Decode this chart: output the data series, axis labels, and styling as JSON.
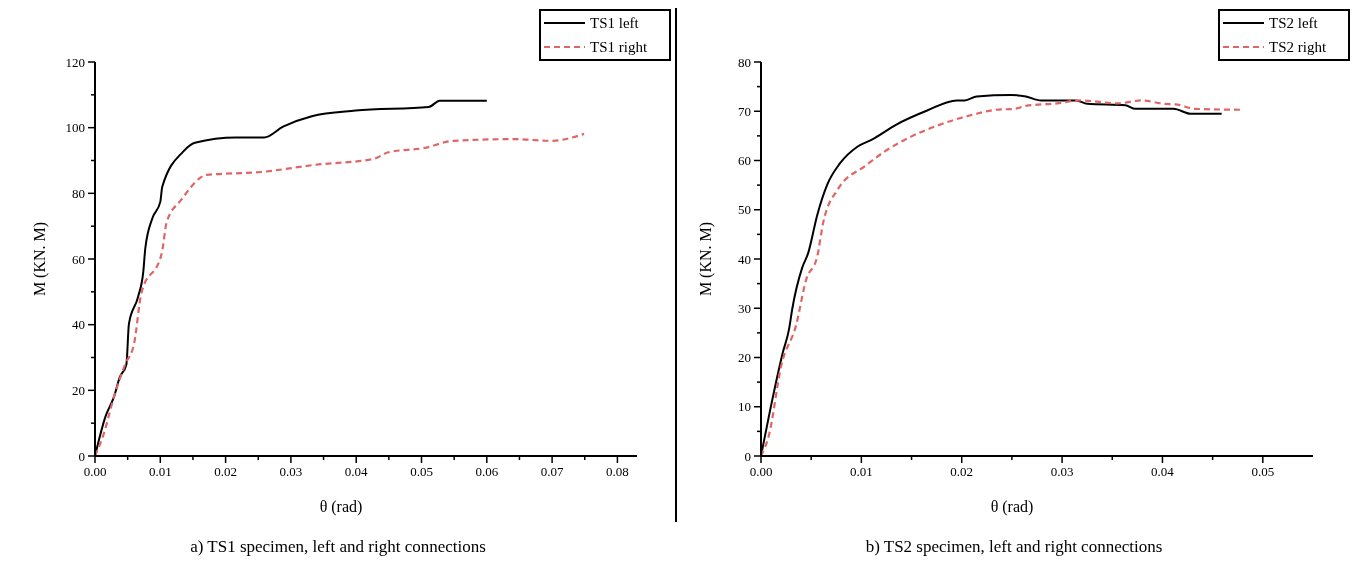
{
  "chart_data": [
    {
      "type": "line",
      "title": "a) TS1 specimen, left and right connections",
      "xlabel": "θ  (rad)",
      "ylabel": "M (KN. M)",
      "xlim": [
        0,
        0.083
      ],
      "ylim": [
        0,
        120
      ],
      "xticks": [
        {
          "value": 0,
          "label": "0.00"
        },
        {
          "value": 0.005,
          "label": null
        },
        {
          "value": 0.01,
          "label": "0.01"
        },
        {
          "value": 0.015,
          "label": null
        },
        {
          "value": 0.02,
          "label": "0.02"
        },
        {
          "value": 0.025,
          "label": null
        },
        {
          "value": 0.03,
          "label": "0.03"
        },
        {
          "value": 0.035,
          "label": null
        },
        {
          "value": 0.04,
          "label": "0.04"
        },
        {
          "value": 0.045,
          "label": null
        },
        {
          "value": 0.05,
          "label": "0.05"
        },
        {
          "value": 0.055,
          "label": null
        },
        {
          "value": 0.06,
          "label": "0.06"
        },
        {
          "value": 0.065,
          "label": null
        },
        {
          "value": 0.07,
          "label": "0.07"
        },
        {
          "value": 0.075,
          "label": null
        },
        {
          "value": 0.08,
          "label": "0.08"
        }
      ],
      "yticks": [
        0,
        {
          "value": 10,
          "label": null
        },
        20,
        {
          "value": 30,
          "label": null
        },
        40,
        {
          "value": 50,
          "label": null
        },
        60,
        {
          "value": 70,
          "label": null
        },
        80,
        {
          "value": 90,
          "label": null
        },
        100,
        {
          "value": 110,
          "label": null
        },
        120
      ],
      "legend": "top right",
      "grid": false,
      "marker": "none",
      "series": [
        {
          "name": "TS1 left",
          "color": "#000000",
          "line_style": "solid",
          "x": [
            0,
            0.0016,
            0.0029,
            0.0038,
            0.0048,
            0.0052,
            0.0066,
            0.0074,
            0.0077,
            0.0088,
            0.01,
            0.0103,
            0.0135,
            0.0153,
            0.0216,
            0.0259,
            0.0288,
            0.0332,
            0.0399,
            0.0511,
            0.0528,
            0.06
          ],
          "values": [
            0,
            12,
            18,
            24,
            27.8,
            40.3,
            48.5,
            56.2,
            63.2,
            72.5,
            77.4,
            82,
            92.7,
            95.4,
            97,
            97,
            100.3,
            103.5,
            105.2,
            106.3,
            108.2,
            108.2
          ]
        },
        {
          "name": "TS1 right",
          "color": "#e06666",
          "line_style": "dashed",
          "x": [
            0,
            0.0013,
            0.0029,
            0.0046,
            0.006,
            0.0071,
            0.0102,
            0.011,
            0.0132,
            0.0171,
            0.0254,
            0.0338,
            0.0427,
            0.0449,
            0.0504,
            0.0549,
            0.0643,
            0.0699,
            0.0749
          ],
          "values": [
            0,
            6.5,
            18,
            27.8,
            34.4,
            49.6,
            61.6,
            71.4,
            78,
            85.6,
            86.5,
            88.7,
            90.5,
            92.5,
            93.8,
            96,
            96.5,
            96,
            98.1
          ]
        }
      ]
    },
    {
      "type": "line",
      "title": "b) TS2 specimen, left and right connections",
      "xlabel": "θ  (rad)",
      "ylabel": "M (KN. M)",
      "xlim": [
        0,
        0.055
      ],
      "ylim": [
        0,
        80
      ],
      "xticks": [
        {
          "value": 0,
          "label": "0.00"
        },
        {
          "value": 0.005,
          "label": null
        },
        {
          "value": 0.01,
          "label": "0.01"
        },
        {
          "value": 0.015,
          "label": null
        },
        {
          "value": 0.02,
          "label": "0.02"
        },
        {
          "value": 0.025,
          "label": null
        },
        {
          "value": 0.03,
          "label": "0.03"
        },
        {
          "value": 0.035,
          "label": null
        },
        {
          "value": 0.04,
          "label": "0.04"
        },
        {
          "value": 0.045,
          "label": null
        },
        {
          "value": 0.05,
          "label": "0.05"
        }
      ],
      "yticks": [
        0,
        {
          "value": 5,
          "label": null
        },
        10,
        {
          "value": 15,
          "label": null
        },
        20,
        {
          "value": 25,
          "label": null
        },
        30,
        {
          "value": 35,
          "label": null
        },
        40,
        {
          "value": 45,
          "label": null
        },
        50,
        {
          "value": 55,
          "label": null
        },
        60,
        {
          "value": 65,
          "label": null
        },
        70,
        {
          "value": 75,
          "label": null
        },
        80
      ],
      "legend": "top right",
      "grid": false,
      "marker": "none",
      "series": [
        {
          "name": "TS2 left",
          "color": "#000000",
          "line_style": "solid",
          "x": [
            0,
            0.0008,
            0.0022,
            0.0028,
            0.0031,
            0.0041,
            0.0047,
            0.0056,
            0.0066,
            0.0079,
            0.0096,
            0.0111,
            0.0134,
            0.0165,
            0.0195,
            0.0203,
            0.0215,
            0.0249,
            0.0264,
            0.0279,
            0.0314,
            0.0325,
            0.0363,
            0.0373,
            0.0411,
            0.0428,
            0.0459
          ],
          "values": [
            0,
            8.2,
            21.2,
            25.8,
            29.7,
            38.2,
            41.2,
            48.9,
            55.1,
            59.5,
            62.8,
            64.3,
            67.2,
            70.1,
            72.2,
            72.2,
            73,
            73.3,
            73,
            72.2,
            72.2,
            71.5,
            71.2,
            70.5,
            70.5,
            69.5,
            69.5
          ]
        },
        {
          "name": "TS2 right",
          "color": "#e06666",
          "line_style": "dashed",
          "x": [
            0,
            0.0008,
            0.002,
            0.0035,
            0.0045,
            0.0056,
            0.0062,
            0.0077,
            0.0104,
            0.0123,
            0.015,
            0.018,
            0.0211,
            0.0234,
            0.0253,
            0.0264,
            0.0295,
            0.0318,
            0.0356,
            0.0379,
            0.0402,
            0.0413,
            0.0432,
            0.0478
          ],
          "values": [
            0,
            4.3,
            18.2,
            26.6,
            35.8,
            40.5,
            47.4,
            54.3,
            58.9,
            61.8,
            64.9,
            67.4,
            69.3,
            70.3,
            70.5,
            71.1,
            71.6,
            72.2,
            71.6,
            72.2,
            71.5,
            71.4,
            70.5,
            70.3
          ]
        }
      ]
    }
  ]
}
